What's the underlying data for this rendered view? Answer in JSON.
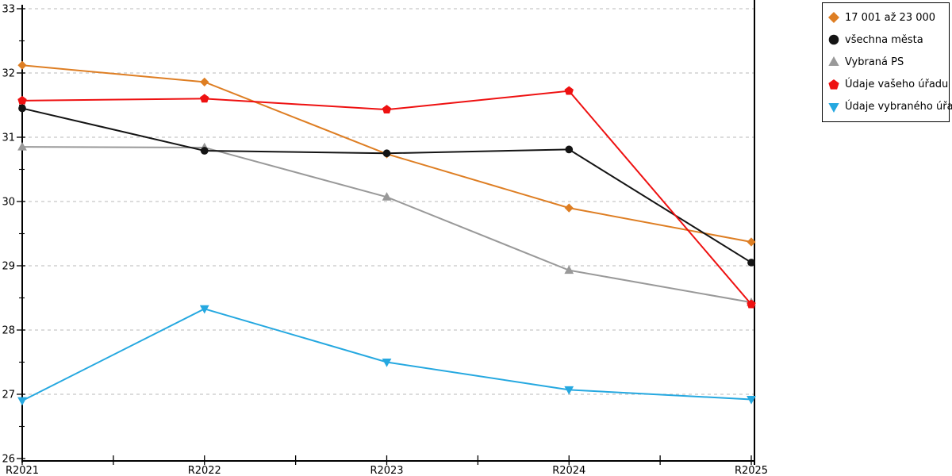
{
  "chart_data": {
    "type": "line",
    "title": "",
    "xlabel": "",
    "ylabel": "",
    "categories": [
      "R2021",
      "R2022",
      "R2023",
      "R2024",
      "R2025"
    ],
    "series": [
      {
        "name": "17 001 až 23 000",
        "marker": "diamond",
        "color": "#DE7E23",
        "values": [
          32.12,
          31.86,
          30.74,
          29.9,
          29.37
        ]
      },
      {
        "name": "všechna města",
        "marker": "circle",
        "color": "#141414",
        "values": [
          31.45,
          30.79,
          30.75,
          30.81,
          29.05
        ]
      },
      {
        "name": "Vybraná PS",
        "marker": "triangle-up",
        "color": "#999999",
        "values": [
          30.85,
          30.84,
          30.07,
          28.93,
          28.43
        ]
      },
      {
        "name": "Údaje vašeho úřadu",
        "marker": "pentagon",
        "color": "#EE1111",
        "values": [
          31.57,
          31.6,
          31.43,
          31.72,
          28.4
        ]
      },
      {
        "name": "Údaje vybraného úřadu",
        "marker": "triangle-down",
        "color": "#25A8E0",
        "values": [
          26.9,
          28.33,
          27.5,
          27.07,
          26.92
        ]
      }
    ],
    "draw_order": [
      0,
      2,
      1,
      3,
      4
    ],
    "ylim": [
      26,
      33
    ],
    "yticks": [
      26,
      27,
      28,
      29,
      30,
      31,
      32,
      33
    ],
    "grid": "horizontal-dashed",
    "legend_position": "top-right",
    "colors": {
      "grid": "#C6C6C6",
      "axis": "#000000",
      "background": "#FFFFFF"
    }
  }
}
